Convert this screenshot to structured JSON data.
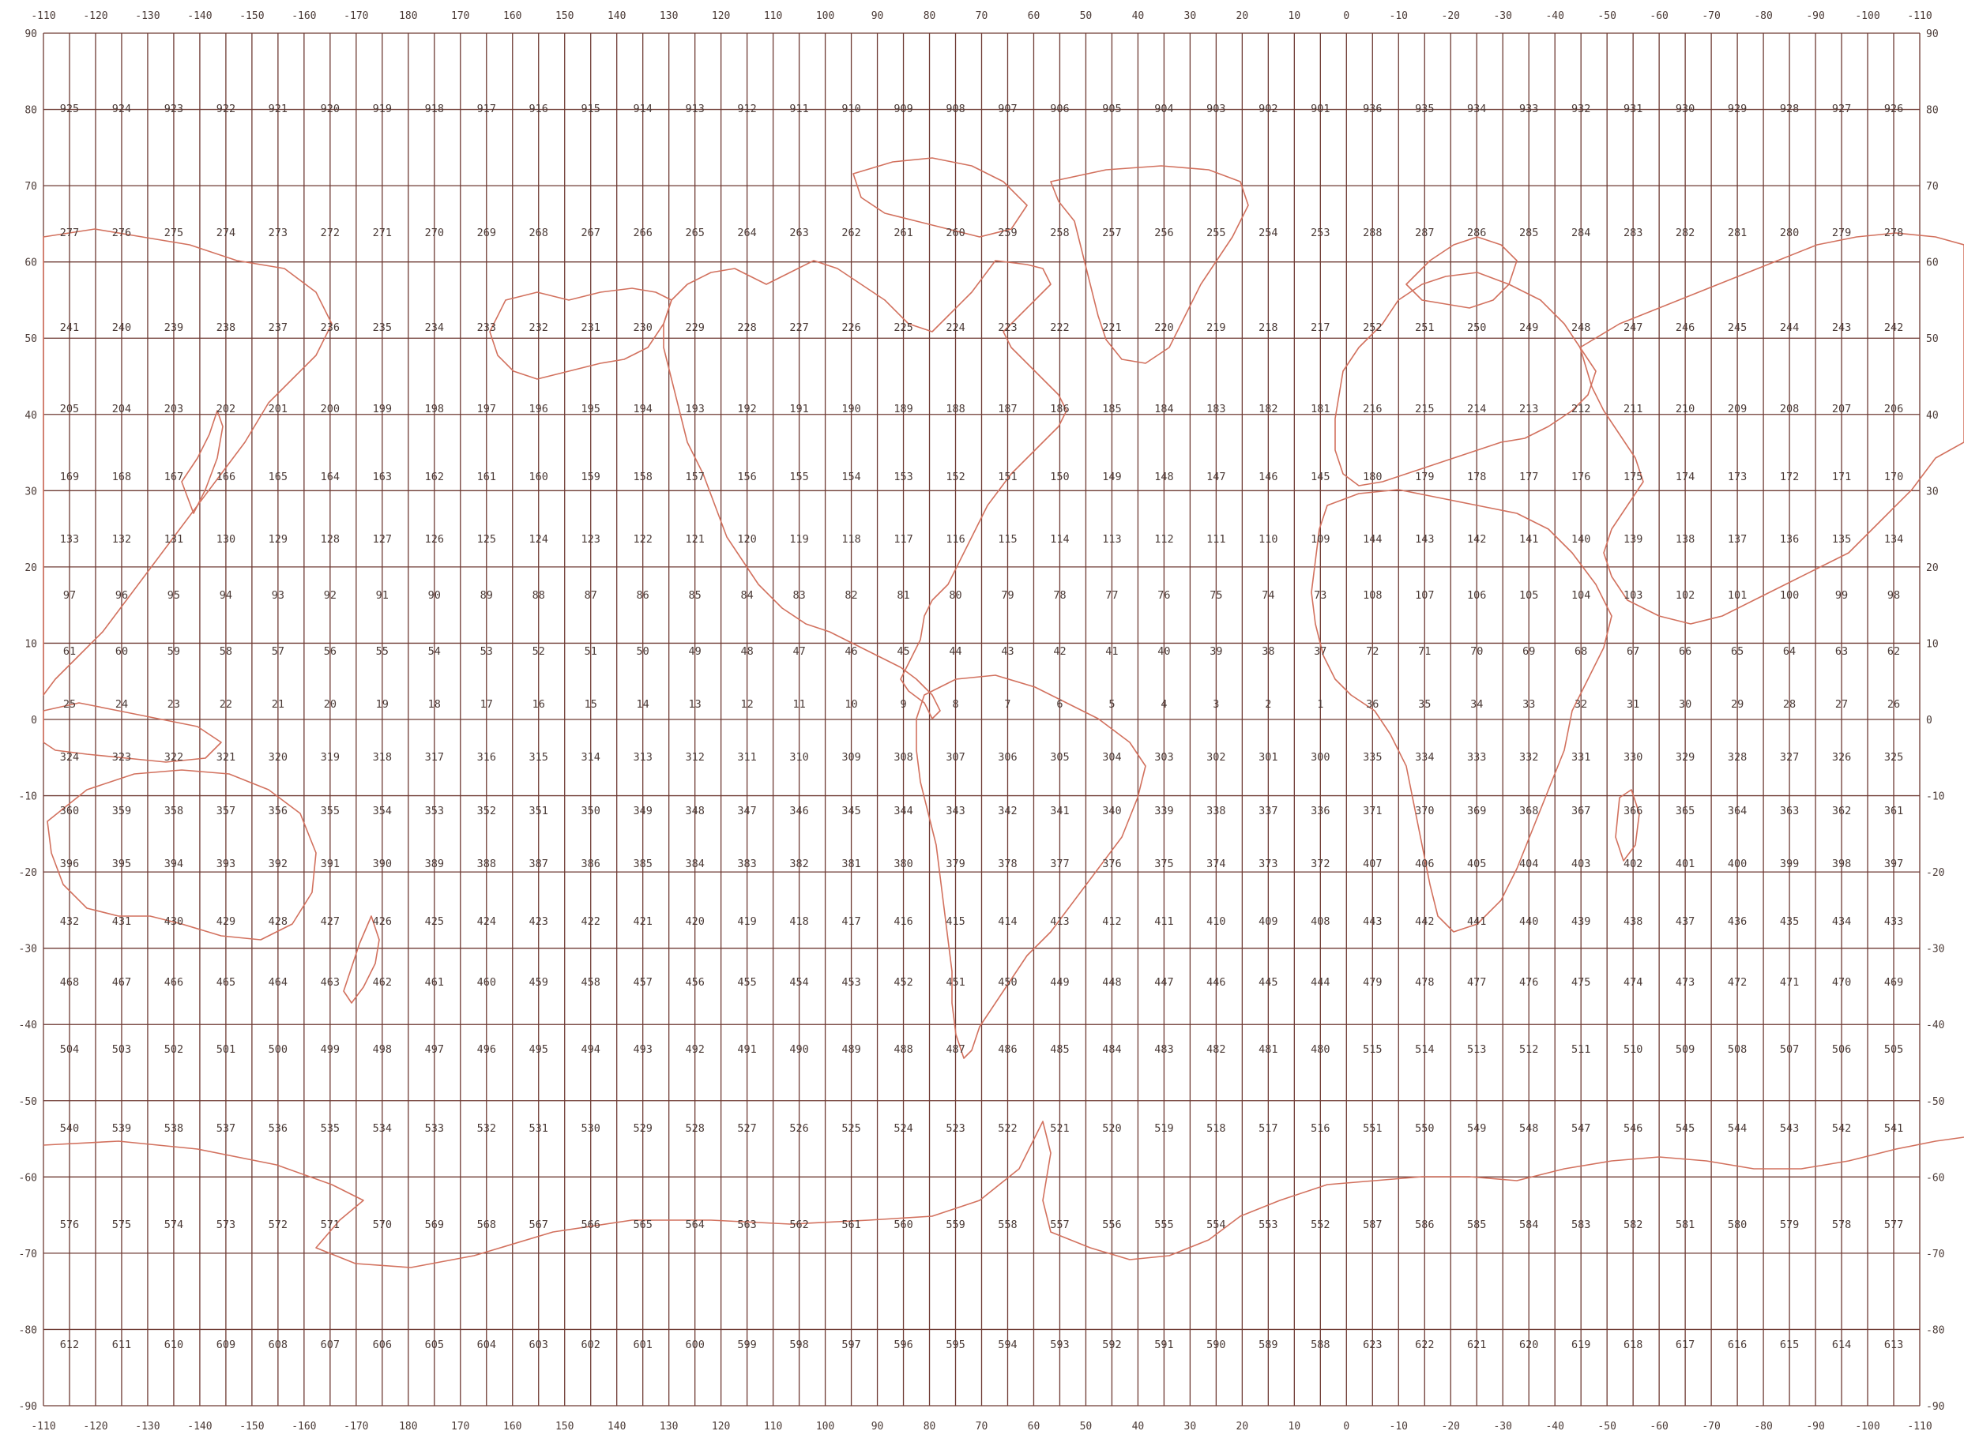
{
  "map": {
    "top_lon_labels": [
      "-110",
      "-120",
      "-130",
      "-140",
      "-150",
      "-160",
      "-170",
      "180",
      "170",
      "160",
      "150",
      "140",
      "130",
      "120",
      "110",
      "100",
      "90",
      "80",
      "70",
      "60",
      "50",
      "40",
      "30",
      "20",
      "10",
      "0",
      "-10",
      "-20",
      "-30",
      "-40",
      "-50",
      "-60",
      "-70",
      "-80",
      "-90",
      "-100",
      "-110"
    ],
    "bottom_lon_labels": [
      "-110",
      "-120",
      "-130",
      "-140",
      "-150",
      "-160",
      "-170",
      "180",
      "170",
      "160",
      "150",
      "140",
      "130",
      "120",
      "110",
      "100",
      "90",
      "80",
      "70",
      "60",
      "50",
      "40",
      "30",
      "20",
      "10",
      "0",
      "-10",
      "-20",
      "-30",
      "-40",
      "-50",
      "-60",
      "-70",
      "-80",
      "-90",
      "-100",
      "-110"
    ],
    "lat_labels": [
      "90",
      "80",
      "70",
      "60",
      "50",
      "40",
      "30",
      "20",
      "10",
      "0",
      "-10",
      "-20",
      "-30",
      "-40",
      "-50",
      "-60",
      "-70",
      "-80",
      "-90"
    ],
    "cell_rows": [
      [
        "925",
        "924",
        "923",
        "922",
        "921",
        "920",
        "919",
        "918",
        "917",
        "916",
        "915",
        "914",
        "913",
        "912",
        "911",
        "910",
        "909",
        "908",
        "907",
        "906",
        "905",
        "904",
        "903",
        "902",
        "901",
        "936",
        "935",
        "934",
        "933",
        "932",
        "931",
        "930",
        "929",
        "928",
        "927",
        "926"
      ],
      [
        "277",
        "276",
        "275",
        "274",
        "273",
        "272",
        "271",
        "270",
        "269",
        "268",
        "267",
        "266",
        "265",
        "264",
        "263",
        "262",
        "261",
        "260",
        "259",
        "258",
        "257",
        "256",
        "255",
        "254",
        "253",
        "288",
        "287",
        "286",
        "285",
        "284",
        "283",
        "282",
        "281",
        "280",
        "279",
        "278"
      ],
      [
        "241",
        "240",
        "239",
        "238",
        "237",
        "236",
        "235",
        "234",
        "233",
        "232",
        "231",
        "230",
        "229",
        "228",
        "227",
        "226",
        "225",
        "224",
        "223",
        "222",
        "221",
        "220",
        "219",
        "218",
        "217",
        "252",
        "251",
        "250",
        "249",
        "248",
        "247",
        "246",
        "245",
        "244",
        "243",
        "242"
      ],
      [
        "205",
        "204",
        "203",
        "202",
        "201",
        "200",
        "199",
        "198",
        "197",
        "196",
        "195",
        "194",
        "193",
        "192",
        "191",
        "190",
        "189",
        "188",
        "187",
        "186",
        "185",
        "184",
        "183",
        "182",
        "181",
        "216",
        "215",
        "214",
        "213",
        "212",
        "211",
        "210",
        "209",
        "208",
        "207",
        "206"
      ],
      [
        "169",
        "168",
        "167",
        "166",
        "165",
        "164",
        "163",
        "162",
        "161",
        "160",
        "159",
        "158",
        "157",
        "156",
        "155",
        "154",
        "153",
        "152",
        "151",
        "150",
        "149",
        "148",
        "147",
        "146",
        "145",
        "180",
        "179",
        "178",
        "177",
        "176",
        "175",
        "174",
        "173",
        "172",
        "171",
        "170"
      ],
      [
        "133",
        "132",
        "131",
        "130",
        "129",
        "128",
        "127",
        "126",
        "125",
        "124",
        "123",
        "122",
        "121",
        "120",
        "119",
        "118",
        "117",
        "116",
        "115",
        "114",
        "113",
        "112",
        "111",
        "110",
        "109",
        "144",
        "143",
        "142",
        "141",
        "140",
        "139",
        "138",
        "137",
        "136",
        "135",
        "134"
      ],
      [
        "97",
        "96",
        "95",
        "94",
        "93",
        "92",
        "91",
        "90",
        "89",
        "88",
        "87",
        "86",
        "85",
        "84",
        "83",
        "82",
        "81",
        "80",
        "79",
        "78",
        "77",
        "76",
        "75",
        "74",
        "73",
        "108",
        "107",
        "106",
        "105",
        "104",
        "103",
        "102",
        "101",
        "100",
        "99",
        "98"
      ],
      [
        "61",
        "60",
        "59",
        "58",
        "57",
        "56",
        "55",
        "54",
        "53",
        "52",
        "51",
        "50",
        "49",
        "48",
        "47",
        "46",
        "45",
        "44",
        "43",
        "42",
        "41",
        "40",
        "39",
        "38",
        "37",
        "72",
        "71",
        "70",
        "69",
        "68",
        "67",
        "66",
        "65",
        "64",
        "63",
        "62"
      ],
      [
        "25",
        "24",
        "23",
        "22",
        "21",
        "20",
        "19",
        "18",
        "17",
        "16",
        "15",
        "14",
        "13",
        "12",
        "11",
        "10",
        "9",
        "8",
        "7",
        "6",
        "5",
        "4",
        "3",
        "2",
        "1",
        "36",
        "35",
        "34",
        "33",
        "32",
        "31",
        "30",
        "29",
        "28",
        "27",
        "26"
      ],
      [
        "324",
        "323",
        "322",
        "321",
        "320",
        "319",
        "318",
        "317",
        "316",
        "315",
        "314",
        "313",
        "312",
        "311",
        "310",
        "309",
        "308",
        "307",
        "306",
        "305",
        "304",
        "303",
        "302",
        "301",
        "300",
        "335",
        "334",
        "333",
        "332",
        "331",
        "330",
        "329",
        "328",
        "327",
        "326",
        "325"
      ],
      [
        "360",
        "359",
        "358",
        "357",
        "356",
        "355",
        "354",
        "353",
        "352",
        "351",
        "350",
        "349",
        "348",
        "347",
        "346",
        "345",
        "344",
        "343",
        "342",
        "341",
        "340",
        "339",
        "338",
        "337",
        "336",
        "371",
        "370",
        "369",
        "368",
        "367",
        "366",
        "365",
        "364",
        "363",
        "362",
        "361"
      ],
      [
        "396",
        "395",
        "394",
        "393",
        "392",
        "391",
        "390",
        "389",
        "388",
        "387",
        "386",
        "385",
        "384",
        "383",
        "382",
        "381",
        "380",
        "379",
        "378",
        "377",
        "376",
        "375",
        "374",
        "373",
        "372",
        "407",
        "406",
        "405",
        "404",
        "403",
        "402",
        "401",
        "400",
        "399",
        "398",
        "397"
      ],
      [
        "432",
        "431",
        "430",
        "429",
        "428",
        "427",
        "426",
        "425",
        "424",
        "423",
        "422",
        "421",
        "420",
        "419",
        "418",
        "417",
        "416",
        "415",
        "414",
        "413",
        "412",
        "411",
        "410",
        "409",
        "408",
        "443",
        "442",
        "441",
        "440",
        "439",
        "438",
        "437",
        "436",
        "435",
        "434",
        "433"
      ],
      [
        "468",
        "467",
        "466",
        "465",
        "464",
        "463",
        "462",
        "461",
        "460",
        "459",
        "458",
        "457",
        "456",
        "455",
        "454",
        "453",
        "452",
        "451",
        "450",
        "449",
        "448",
        "447",
        "446",
        "445",
        "444",
        "479",
        "478",
        "477",
        "476",
        "475",
        "474",
        "473",
        "472",
        "471",
        "470",
        "469"
      ],
      [
        "504",
        "503",
        "502",
        "501",
        "500",
        "499",
        "498",
        "497",
        "496",
        "495",
        "494",
        "493",
        "492",
        "491",
        "490",
        "489",
        "488",
        "487",
        "486",
        "485",
        "484",
        "483",
        "482",
        "481",
        "480",
        "515",
        "514",
        "513",
        "512",
        "511",
        "510",
        "509",
        "508",
        "507",
        "506",
        "505"
      ],
      [
        "540",
        "539",
        "538",
        "537",
        "536",
        "535",
        "534",
        "533",
        "532",
        "531",
        "530",
        "529",
        "528",
        "527",
        "526",
        "525",
        "524",
        "523",
        "522",
        "521",
        "520",
        "519",
        "518",
        "517",
        "516",
        "551",
        "550",
        "549",
        "548",
        "547",
        "546",
        "545",
        "544",
        "543",
        "542",
        "541"
      ],
      [
        "576",
        "575",
        "574",
        "573",
        "572",
        "571",
        "570",
        "569",
        "568",
        "567",
        "566",
        "565",
        "564",
        "563",
        "562",
        "561",
        "560",
        "559",
        "558",
        "557",
        "556",
        "555",
        "554",
        "553",
        "552",
        "587",
        "586",
        "585",
        "584",
        "583",
        "582",
        "581",
        "580",
        "579",
        "578",
        "577"
      ],
      [
        "612",
        "611",
        "610",
        "609",
        "608",
        "607",
        "606",
        "605",
        "604",
        "603",
        "602",
        "601",
        "600",
        "599",
        "598",
        "597",
        "596",
        "595",
        "594",
        "593",
        "592",
        "591",
        "590",
        "589",
        "588",
        "623",
        "622",
        "621",
        "620",
        "619",
        "618",
        "617",
        "616",
        "615",
        "614",
        "613"
      ]
    ],
    "colors": {
      "grid": "#6e3a33",
      "coastline": "#d2715e",
      "text": "#4a3a36",
      "background": "#ffffff"
    }
  }
}
